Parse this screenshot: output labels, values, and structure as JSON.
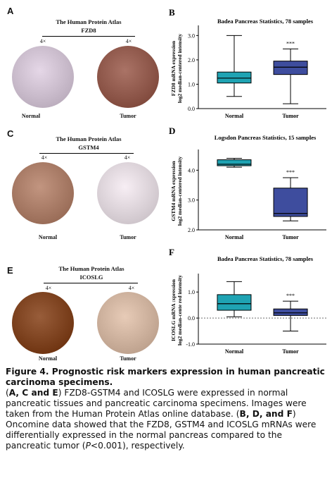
{
  "panels": [
    {
      "letter": "A",
      "hpa_title": "The Human Protein Atlas",
      "gene": "FZD8",
      "mag_left": "4×",
      "mag_right": "4×",
      "label_left": "Normal",
      "label_right": "Tumor",
      "tissue_left_color": "#c7b9c9",
      "tissue_right_color": "#8c5548"
    },
    {
      "letter": "C",
      "hpa_title": "The Human Protein Atlas",
      "gene": "GSTM4",
      "mag_left": "4×",
      "mag_right": "4×",
      "label_left": "Normal",
      "label_right": "Tumor",
      "tissue_left_color": "#a47762",
      "tissue_right_color": "#d9d0d6"
    },
    {
      "letter": "E",
      "hpa_title": "The Human Protein Atlas",
      "gene": "ICOSLG",
      "mag_left": "4×",
      "mag_right": "4×",
      "label_left": "Normal",
      "label_right": "Tumor",
      "tissue_left_color": "#7a3f1c",
      "tissue_right_color": "#c9ad99"
    }
  ],
  "chart_data": [
    {
      "letter": "B",
      "type": "boxplot",
      "title": "Badea Pancreas Statistics, 78 samples",
      "ylabel_line1": "FZD8 mRNA expression",
      "ylabel_line2": "log2 median-centered intensity",
      "ylim": [
        0.0,
        3.3
      ],
      "yticks": [
        "0.0",
        "1.0",
        "2.0",
        "3.0"
      ],
      "ytick_values": [
        0.0,
        1.0,
        2.0,
        3.0
      ],
      "categories": [
        "Normal",
        "Tumor"
      ],
      "colors": [
        "#1fa3b3",
        "#3e4d9e"
      ],
      "boxes": [
        {
          "min": 0.5,
          "q1": 1.05,
          "median": 1.25,
          "q3": 1.5,
          "max": 3.0
        },
        {
          "min": 0.2,
          "q1": 1.4,
          "median": 1.7,
          "q3": 1.95,
          "max": 2.45
        }
      ],
      "significance": "***",
      "zero_line": false
    },
    {
      "letter": "D",
      "type": "boxplot",
      "title": "Logsdon Pancreas Statistics, 15 samples",
      "ylabel_line1": "GSTM4 mRNA expression",
      "ylabel_line2": "log2 median-centered intensity",
      "ylim": [
        2.0,
        4.6
      ],
      "yticks": [
        "2.0",
        "3.0",
        "4.0"
      ],
      "ytick_values": [
        2.0,
        3.0,
        4.0
      ],
      "categories": [
        "Normal",
        "Tumor"
      ],
      "colors": [
        "#1fa3b3",
        "#3e4d9e"
      ],
      "boxes": [
        {
          "min": 4.1,
          "q1": 4.15,
          "median": 4.2,
          "q3": 4.35,
          "max": 4.4
        },
        {
          "min": 2.3,
          "q1": 2.45,
          "median": 2.55,
          "q3": 3.4,
          "max": 3.75
        }
      ],
      "significance": "***",
      "zero_line": false
    },
    {
      "letter": "F",
      "type": "boxplot",
      "title": "Badea Pancreas Statistics, 78 samples",
      "ylabel_line1": "ICOSLG mRNA :xpression",
      "ylabel_line2": "log2 median-cente red intensity",
      "ylim": [
        -1.0,
        1.6
      ],
      "yticks": [
        "-1.0",
        "0.0",
        "1.0"
      ],
      "ytick_values": [
        -1.0,
        0.0,
        1.0
      ],
      "categories": [
        "Normal",
        "Tumor"
      ],
      "colors": [
        "#1fa3b3",
        "#3e4d9e"
      ],
      "boxes": [
        {
          "min": 0.05,
          "q1": 0.3,
          "median": 0.55,
          "q3": 0.9,
          "max": 1.4
        },
        {
          "min": -0.5,
          "q1": 0.1,
          "median": 0.2,
          "q3": 0.35,
          "max": 0.65
        }
      ],
      "significance": "***",
      "zero_line": true
    }
  ],
  "caption": {
    "title": "Figure 4. Prognostic risk markers expression in human pancreatic carcinoma specimens.",
    "p1": "(",
    "p1_bold": "A, C and E",
    "p1_rest": ") FZD8-GSTM4 and ICOSLG were expressed in normal pancreatic tissues and pancreatic carcinoma specimens. Images were taken from the Human Protein Atlas online database. (",
    "p2_bold": "B, D, and F",
    "p2_rest": ") Oncomine data showed that the FZD8, GSTM4 and ICOSLG mRNAs were differentially expressed in the normal pancreas compared to the pancreatic tumor (",
    "p_italic": "P",
    "p_end": "<0.001), respectively."
  }
}
